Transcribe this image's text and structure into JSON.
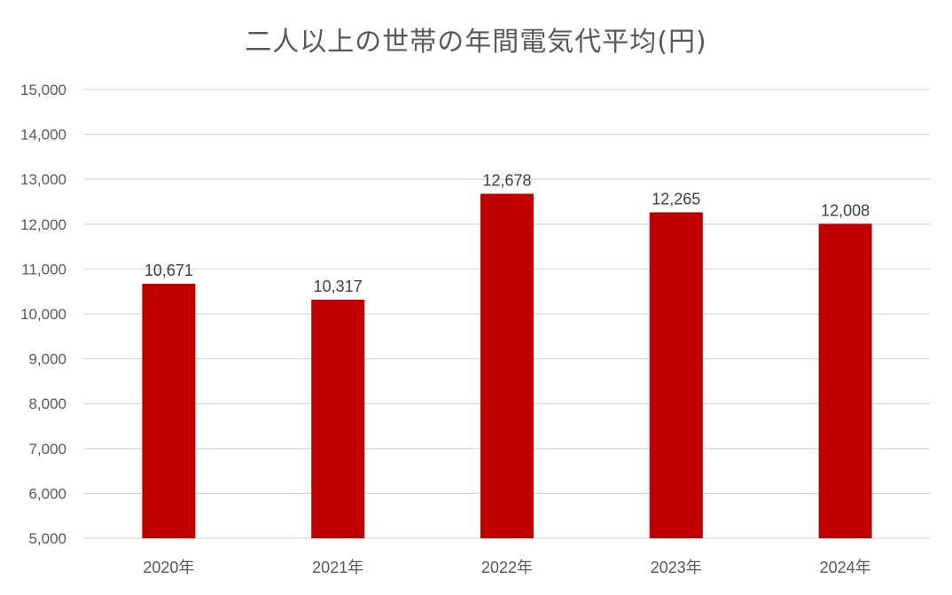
{
  "chart_data": {
    "type": "bar",
    "title": "二人以上の世帯の年間電気代平均(円)",
    "categories": [
      "2020年",
      "2021年",
      "2022年",
      "2023年",
      "2024年"
    ],
    "values": [
      10671,
      10317,
      12678,
      12265,
      12008
    ],
    "value_labels": [
      "10,671",
      "10,317",
      "12,678",
      "12,265",
      "12,008"
    ],
    "ylim": [
      5000,
      15000
    ],
    "yticks": [
      5000,
      6000,
      7000,
      8000,
      9000,
      10000,
      11000,
      12000,
      13000,
      14000,
      15000
    ],
    "ytick_labels": [
      "5,000",
      "6,000",
      "7,000",
      "8,000",
      "9,000",
      "10,000",
      "11,000",
      "12,000",
      "13,000",
      "14,000",
      "15,000"
    ],
    "grid": true,
    "legend": "none",
    "colors": {
      "bar": "#c00000",
      "grid": "#d9d9d9",
      "text": "#595959",
      "label": "#404040"
    }
  }
}
